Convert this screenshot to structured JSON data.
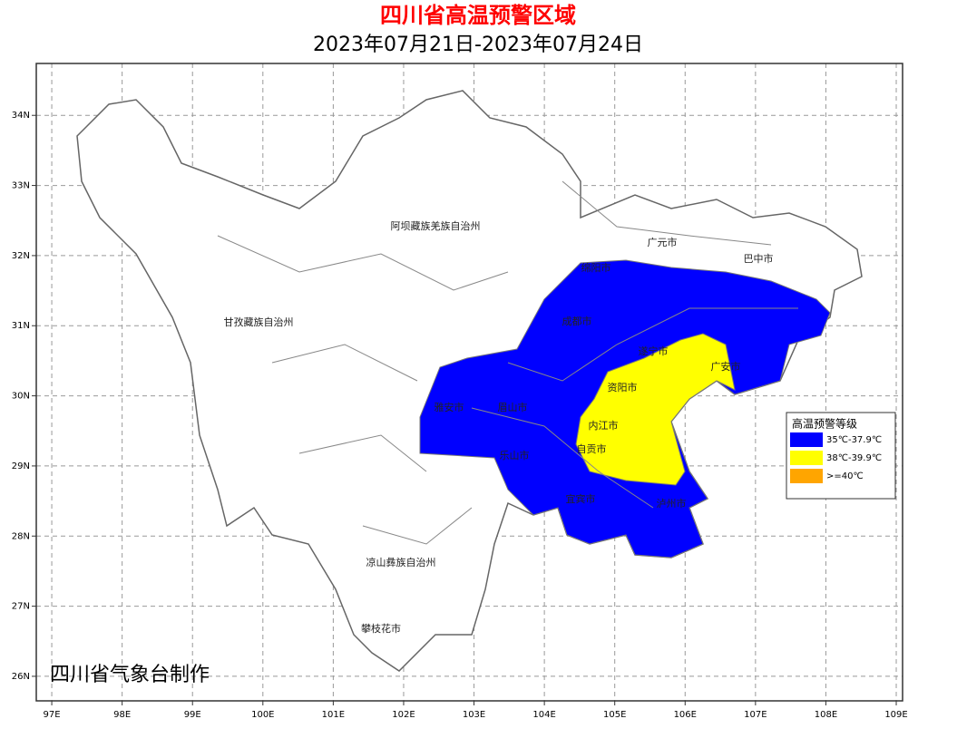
{
  "header": {
    "title": "四川省高温预警区域",
    "subtitle": "2023年07月21日-2023年07月24日"
  },
  "map": {
    "xlim": [
      96.78,
      109.09
    ],
    "ylim": [
      25.65,
      34.74
    ],
    "xticks": [
      {
        "value": 97,
        "label": "97E"
      },
      {
        "value": 98,
        "label": "98E"
      },
      {
        "value": 99,
        "label": "99E"
      },
      {
        "value": 100,
        "label": "100E"
      },
      {
        "value": 101,
        "label": "101E"
      },
      {
        "value": 102,
        "label": "102E"
      },
      {
        "value": 103,
        "label": "103E"
      },
      {
        "value": 104,
        "label": "104E"
      },
      {
        "value": 105,
        "label": "105E"
      },
      {
        "value": 106,
        "label": "106E"
      },
      {
        "value": 107,
        "label": "107E"
      },
      {
        "value": 108,
        "label": "108E"
      },
      {
        "value": 109,
        "label": "109E"
      }
    ],
    "yticks": [
      {
        "value": 26,
        "label": "26N"
      },
      {
        "value": 27,
        "label": "27N"
      },
      {
        "value": 28,
        "label": "28N"
      },
      {
        "value": 29,
        "label": "29N"
      },
      {
        "value": 30,
        "label": "30N"
      },
      {
        "value": 31,
        "label": "31N"
      },
      {
        "value": 32,
        "label": "32N"
      },
      {
        "value": 33,
        "label": "33N"
      },
      {
        "value": 34,
        "label": "34N"
      }
    ],
    "grid": true,
    "regions": [
      "阿坝藏族羌族自治州",
      "甘孜藏族自治州",
      "凉山彝族自治州",
      "攀枝花市",
      "广元市",
      "巴中市",
      "绵阳市",
      "成都市",
      "遂宁市",
      "广安市",
      "资阳市",
      "内江市",
      "自贡市",
      "雅安市",
      "眉山市",
      "乐山市",
      "宜宾市",
      "泸州市"
    ]
  },
  "legend": {
    "title": "高温预警等级",
    "items": [
      {
        "label": "35℃-37.9℃",
        "color": "#0000ff"
      },
      {
        "label": "38℃-39.9℃",
        "color": "#ffff00"
      },
      {
        "label": ">=40℃",
        "color": "#ffa500"
      }
    ]
  },
  "credit": "四川省气象台制作"
}
